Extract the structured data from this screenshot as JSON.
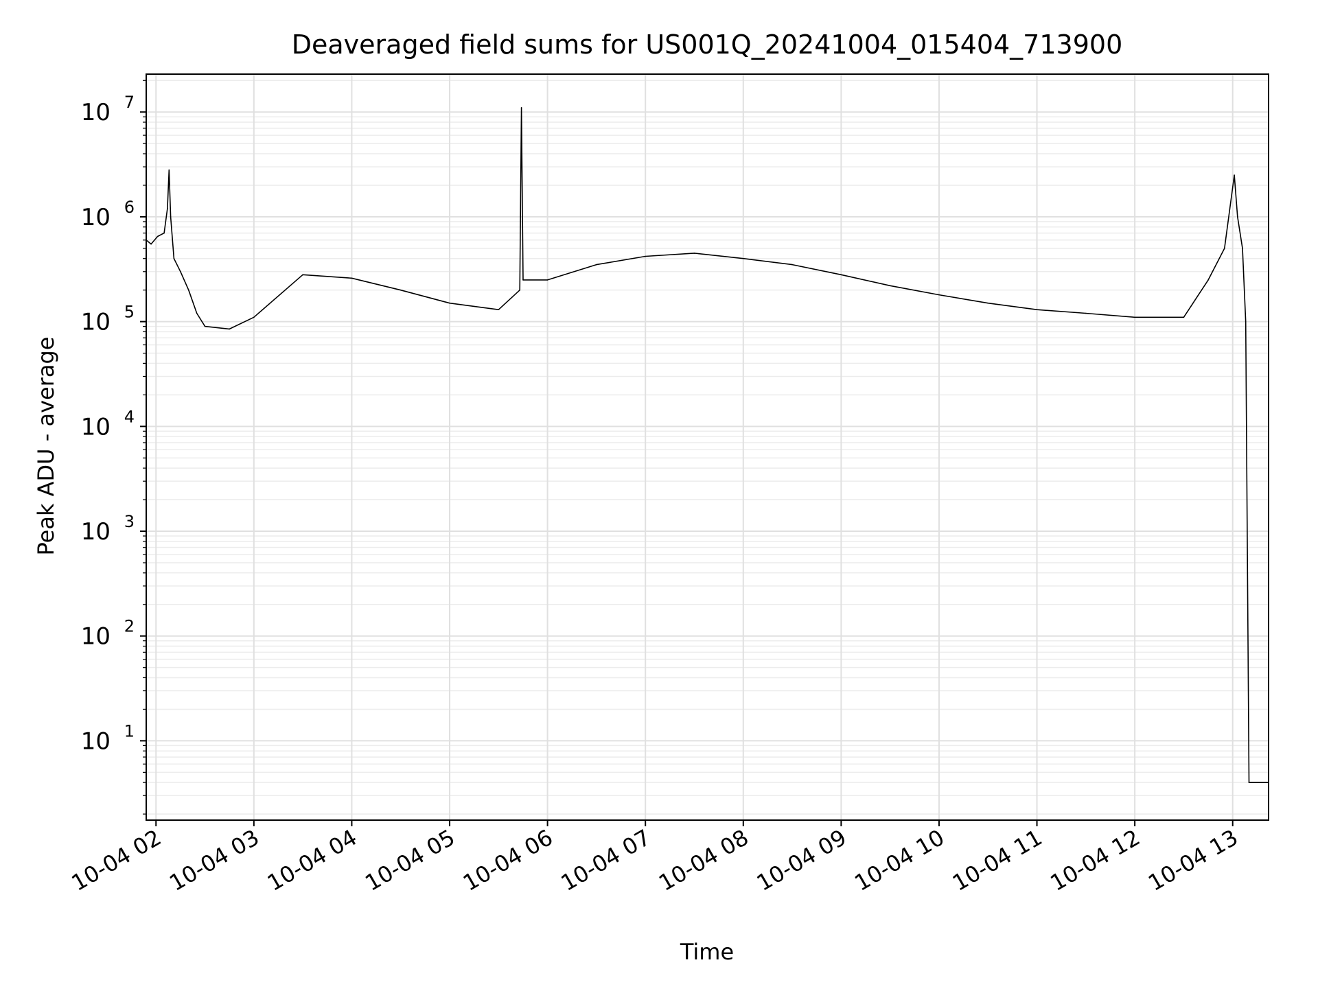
{
  "chart_data": {
    "type": "line",
    "title": "Deaveraged field sums for US001Q_20241004_015404_713900",
    "xlabel": "Time",
    "ylabel": "Peak ADU - average",
    "yscale": "log",
    "ylim": [
      1.75,
      23000000
    ],
    "xlim": [
      "2024-10-04T01:54:00",
      "2024-10-04T13:22:00"
    ],
    "grid": "major and minor, light gray",
    "legend": "none",
    "line_color": "#000000",
    "x_ticks": [
      {
        "t": "2024-10-04T02:00",
        "label": "10-04 02"
      },
      {
        "t": "2024-10-04T03:00",
        "label": "10-04 03"
      },
      {
        "t": "2024-10-04T04:00",
        "label": "10-04 04"
      },
      {
        "t": "2024-10-04T05:00",
        "label": "10-04 05"
      },
      {
        "t": "2024-10-04T06:00",
        "label": "10-04 06"
      },
      {
        "t": "2024-10-04T07:00",
        "label": "10-04 07"
      },
      {
        "t": "2024-10-04T08:00",
        "label": "10-04 08"
      },
      {
        "t": "2024-10-04T09:00",
        "label": "10-04 09"
      },
      {
        "t": "2024-10-04T10:00",
        "label": "10-04 10"
      },
      {
        "t": "2024-10-04T11:00",
        "label": "10-04 11"
      },
      {
        "t": "2024-10-04T12:00",
        "label": "10-04 12"
      },
      {
        "t": "2024-10-04T13:00",
        "label": "10-04 13"
      }
    ],
    "y_ticks": [
      {
        "value": 10,
        "base": "10",
        "exp": "1"
      },
      {
        "value": 100,
        "base": "10",
        "exp": "2"
      },
      {
        "value": 1000,
        "base": "10",
        "exp": "3"
      },
      {
        "value": 10000,
        "base": "10",
        "exp": "4"
      },
      {
        "value": 100000,
        "base": "10",
        "exp": "5"
      },
      {
        "value": 1000000,
        "base": "10",
        "exp": "6"
      },
      {
        "value": 10000000,
        "base": "10",
        "exp": "7"
      }
    ],
    "series": [
      {
        "points": [
          [
            "2024-10-04T01:54",
            600000
          ],
          [
            "2024-10-04T01:57",
            550000
          ],
          [
            "2024-10-04T02:01",
            650000
          ],
          [
            "2024-10-04T02:05",
            700000
          ],
          [
            "2024-10-04T02:07",
            1200000
          ],
          [
            "2024-10-04T02:08",
            2800000
          ],
          [
            "2024-10-04T02:09",
            1000000
          ],
          [
            "2024-10-04T02:11",
            400000
          ],
          [
            "2024-10-04T02:15",
            300000
          ],
          [
            "2024-10-04T02:20",
            200000
          ],
          [
            "2024-10-04T02:25",
            120000
          ],
          [
            "2024-10-04T02:30",
            90000
          ],
          [
            "2024-10-04T02:45",
            85000
          ],
          [
            "2024-10-04T03:00",
            110000
          ],
          [
            "2024-10-04T03:30",
            280000
          ],
          [
            "2024-10-04T04:00",
            260000
          ],
          [
            "2024-10-04T04:30",
            200000
          ],
          [
            "2024-10-04T05:00",
            150000
          ],
          [
            "2024-10-04T05:30",
            130000
          ],
          [
            "2024-10-04T05:43",
            200000
          ],
          [
            "2024-10-04T05:44",
            11000000
          ],
          [
            "2024-10-04T05:45",
            250000
          ],
          [
            "2024-10-04T06:00",
            250000
          ],
          [
            "2024-10-04T06:30",
            350000
          ],
          [
            "2024-10-04T07:00",
            420000
          ],
          [
            "2024-10-04T07:30",
            450000
          ],
          [
            "2024-10-04T08:00",
            400000
          ],
          [
            "2024-10-04T08:30",
            350000
          ],
          [
            "2024-10-04T09:00",
            280000
          ],
          [
            "2024-10-04T09:30",
            220000
          ],
          [
            "2024-10-04T10:00",
            180000
          ],
          [
            "2024-10-04T10:30",
            150000
          ],
          [
            "2024-10-04T11:00",
            130000
          ],
          [
            "2024-10-04T11:30",
            120000
          ],
          [
            "2024-10-04T12:00",
            110000
          ],
          [
            "2024-10-04T12:30",
            110000
          ],
          [
            "2024-10-04T12:45",
            250000
          ],
          [
            "2024-10-04T12:55",
            500000
          ],
          [
            "2024-10-04T13:01",
            2500000
          ],
          [
            "2024-10-04T13:03",
            1000000
          ],
          [
            "2024-10-04T13:06",
            500000
          ],
          [
            "2024-10-04T13:08",
            100000
          ],
          [
            "2024-10-04T13:10",
            4
          ],
          [
            "2024-10-04T13:22",
            4
          ]
        ]
      }
    ]
  }
}
